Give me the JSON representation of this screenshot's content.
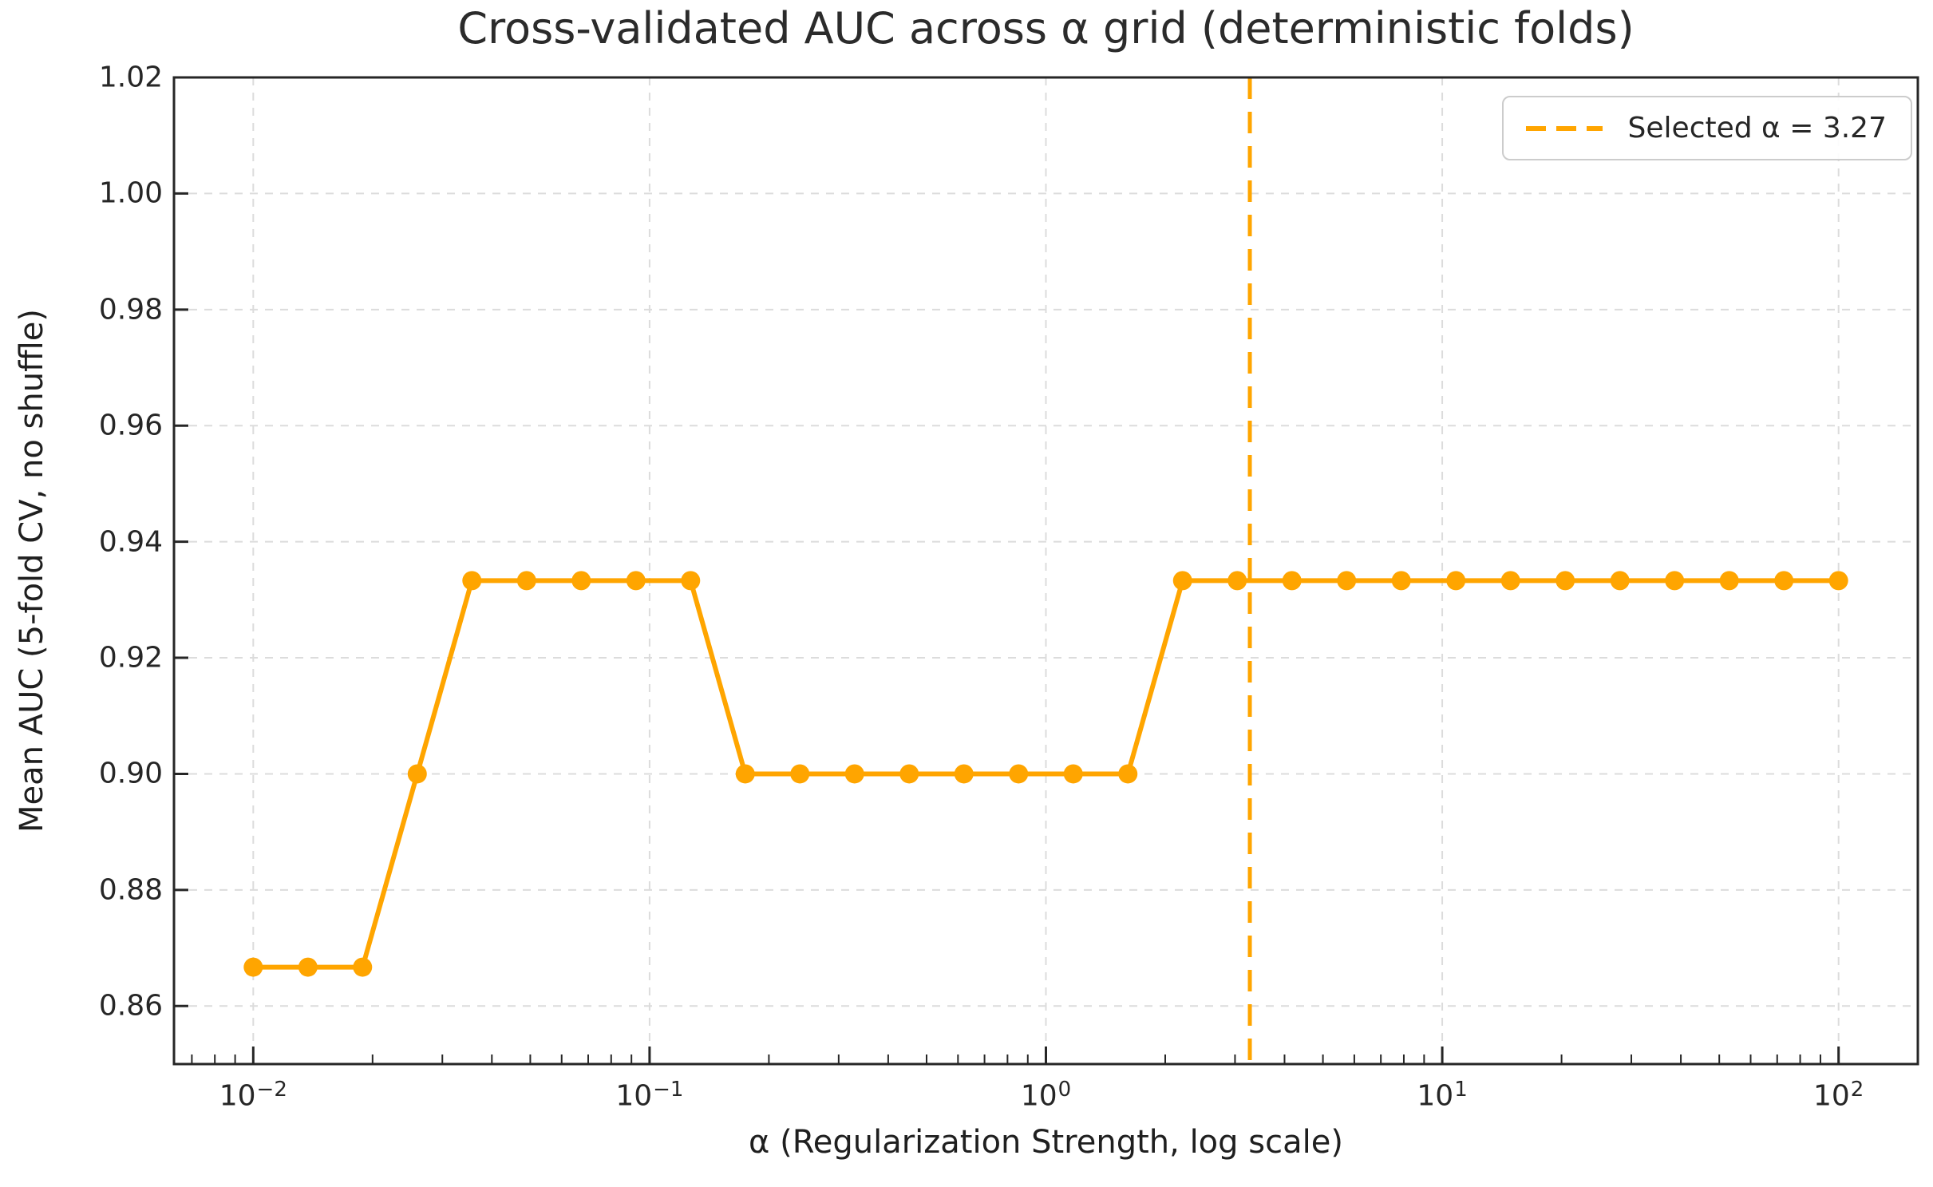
{
  "colors": {
    "accent_orange": "#FFA500",
    "grid": "#DCDCDC",
    "spine": "#262626",
    "text": "#262626",
    "legend_border": "#CCCCCC"
  },
  "legend": {
    "label": "Selected α = 3.27",
    "position": "upper right"
  },
  "chart_data": {
    "type": "line",
    "title": "Cross-validated AUC across α grid (deterministic folds)",
    "xlabel": "α (Regularization Strength, log scale)",
    "ylabel": "Mean AUC (5-fold CV, no shuffle)",
    "x_scale": "log",
    "xlim_log10": [
      -2.2,
      2.2
    ],
    "ylim": [
      0.85,
      1.02
    ],
    "x_tick_exponents": [
      -2,
      -1,
      0,
      1,
      2
    ],
    "y_tick_labels": [
      "0.86",
      "0.88",
      "0.90",
      "0.92",
      "0.94",
      "0.96",
      "0.98",
      "1.00",
      "1.02"
    ],
    "grid": true,
    "selected_alpha": 3.27,
    "annotation_line": {
      "x": 3.27,
      "style": "dashed",
      "color": "#FFA500",
      "label": "Selected α = 3.27"
    },
    "series": [
      {
        "name": "Mean AUC (5-fold CV, no shuffle)",
        "color": "#FFA500",
        "marker": "o",
        "x": [
          0.01,
          0.01374,
          0.01887,
          0.02593,
          0.03562,
          0.04894,
          0.06723,
          0.09237,
          0.1269,
          0.17433,
          0.2395,
          0.32903,
          0.45204,
          0.62102,
          0.85317,
          1.1721,
          1.61026,
          2.21222,
          3.0392,
          4.17532,
          5.73615,
          7.88046,
          10.82637,
          14.87352,
          20.4336,
          28.07216,
          38.5662,
          52.98317,
          72.78954,
          100.0
        ],
        "y": [
          0.8667,
          0.8667,
          0.8667,
          0.9,
          0.9333,
          0.9333,
          0.9333,
          0.9333,
          0.9333,
          0.9,
          0.9,
          0.9,
          0.9,
          0.9,
          0.9,
          0.9,
          0.9,
          0.9333,
          0.9333,
          0.9333,
          0.9333,
          0.9333,
          0.9333,
          0.9333,
          0.9333,
          0.9333,
          0.9333,
          0.9333,
          0.9333,
          0.9333
        ]
      }
    ]
  }
}
